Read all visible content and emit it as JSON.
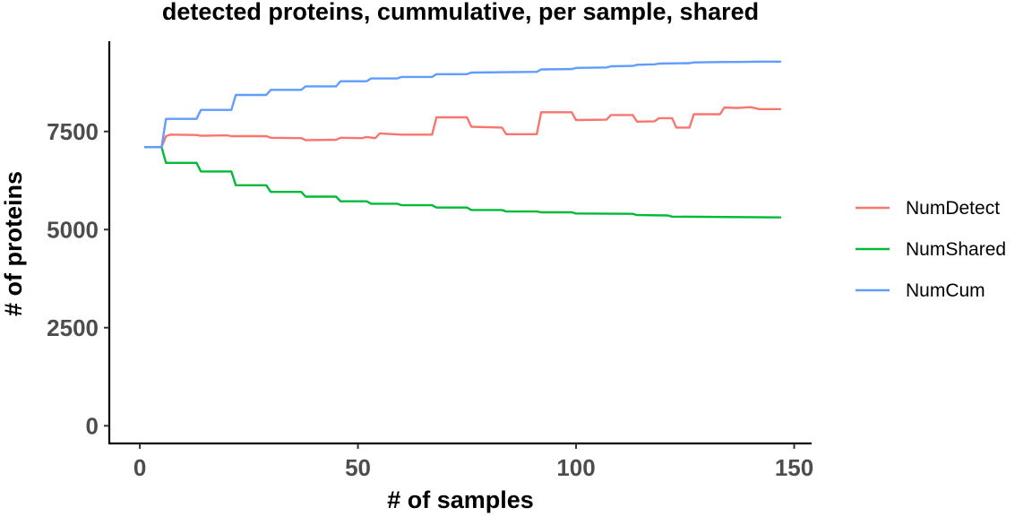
{
  "chart_data": {
    "type": "line",
    "title": "detected proteins, cummulative, per sample, shared",
    "xlabel": "# of samples",
    "ylabel": "# of proteins",
    "xlim": [
      -7,
      154
    ],
    "ylim": [
      -450,
      9800
    ],
    "x_ticks": [
      0,
      50,
      100,
      150
    ],
    "y_ticks": [
      0,
      2500,
      5000,
      7500
    ],
    "x_tick_labels": [
      "0",
      "50",
      "100",
      "150"
    ],
    "y_tick_labels": [
      "0",
      "2500",
      "5000",
      "7500"
    ],
    "grid": false,
    "legend_position": "right",
    "series": [
      {
        "name": "NumDetect",
        "color": "#F8766D",
        "points": [
          [
            1,
            7100
          ],
          [
            5,
            7100
          ],
          [
            6,
            7380
          ],
          [
            7,
            7420
          ],
          [
            13,
            7410
          ],
          [
            14,
            7390
          ],
          [
            20,
            7400
          ],
          [
            21,
            7380
          ],
          [
            29,
            7380
          ],
          [
            30,
            7340
          ],
          [
            37,
            7330
          ],
          [
            38,
            7280
          ],
          [
            45,
            7290
          ],
          [
            46,
            7340
          ],
          [
            51,
            7330
          ],
          [
            52,
            7360
          ],
          [
            54,
            7330
          ],
          [
            55,
            7450
          ],
          [
            60,
            7420
          ],
          [
            67,
            7420
          ],
          [
            68,
            7860
          ],
          [
            75,
            7860
          ],
          [
            76,
            7620
          ],
          [
            83,
            7600
          ],
          [
            84,
            7430
          ],
          [
            91,
            7430
          ],
          [
            92,
            7990
          ],
          [
            99,
            7990
          ],
          [
            100,
            7790
          ],
          [
            107,
            7800
          ],
          [
            108,
            7920
          ],
          [
            113,
            7920
          ],
          [
            114,
            7750
          ],
          [
            118,
            7760
          ],
          [
            119,
            7840
          ],
          [
            122,
            7840
          ],
          [
            123,
            7600
          ],
          [
            126,
            7600
          ],
          [
            127,
            7940
          ],
          [
            133,
            7940
          ],
          [
            134,
            8110
          ],
          [
            137,
            8100
          ],
          [
            140,
            8120
          ],
          [
            142,
            8070
          ],
          [
            147,
            8070
          ]
        ]
      },
      {
        "name": "NumShared",
        "color": "#00BA38",
        "points": [
          [
            1,
            7100
          ],
          [
            5,
            7100
          ],
          [
            6,
            6700
          ],
          [
            13,
            6700
          ],
          [
            14,
            6480
          ],
          [
            21,
            6480
          ],
          [
            22,
            6130
          ],
          [
            29,
            6130
          ],
          [
            30,
            5960
          ],
          [
            37,
            5960
          ],
          [
            38,
            5840
          ],
          [
            45,
            5840
          ],
          [
            46,
            5720
          ],
          [
            52,
            5720
          ],
          [
            53,
            5660
          ],
          [
            59,
            5660
          ],
          [
            60,
            5620
          ],
          [
            67,
            5620
          ],
          [
            68,
            5560
          ],
          [
            75,
            5560
          ],
          [
            76,
            5500
          ],
          [
            83,
            5500
          ],
          [
            84,
            5460
          ],
          [
            91,
            5460
          ],
          [
            92,
            5440
          ],
          [
            99,
            5440
          ],
          [
            100,
            5410
          ],
          [
            113,
            5400
          ],
          [
            114,
            5370
          ],
          [
            121,
            5360
          ],
          [
            122,
            5330
          ],
          [
            147,
            5310
          ]
        ]
      },
      {
        "name": "NumCum",
        "color": "#619CFF",
        "points": [
          [
            1,
            7100
          ],
          [
            5,
            7100
          ],
          [
            6,
            7820
          ],
          [
            13,
            7820
          ],
          [
            14,
            8050
          ],
          [
            21,
            8050
          ],
          [
            22,
            8430
          ],
          [
            29,
            8430
          ],
          [
            30,
            8560
          ],
          [
            37,
            8560
          ],
          [
            38,
            8650
          ],
          [
            45,
            8650
          ],
          [
            46,
            8780
          ],
          [
            52,
            8780
          ],
          [
            53,
            8850
          ],
          [
            59,
            8850
          ],
          [
            60,
            8890
          ],
          [
            67,
            8890
          ],
          [
            68,
            8960
          ],
          [
            75,
            8960
          ],
          [
            76,
            9000
          ],
          [
            91,
            9020
          ],
          [
            92,
            9080
          ],
          [
            99,
            9090
          ],
          [
            100,
            9120
          ],
          [
            107,
            9130
          ],
          [
            108,
            9160
          ],
          [
            113,
            9170
          ],
          [
            114,
            9200
          ],
          [
            118,
            9210
          ],
          [
            119,
            9230
          ],
          [
            126,
            9240
          ],
          [
            127,
            9260
          ],
          [
            134,
            9270
          ],
          [
            137,
            9270
          ],
          [
            142,
            9280
          ],
          [
            147,
            9280
          ]
        ]
      }
    ]
  }
}
